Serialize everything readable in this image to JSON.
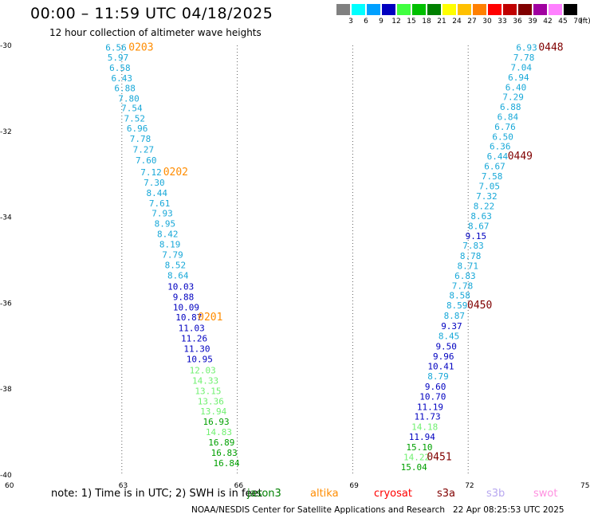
{
  "header": {
    "title": "00:00 – 11:59 UTC 04/18/2025",
    "subtitle": "12 hour collection of altimeter wave heights"
  },
  "color_scale": {
    "unit_label": "(ft)",
    "steps": [
      {
        "label": "3",
        "color": "#808080"
      },
      {
        "label": "6",
        "color": "#00ffff"
      },
      {
        "label": "9",
        "color": "#00a0ff"
      },
      {
        "label": "12",
        "color": "#0000c0"
      },
      {
        "label": "15",
        "color": "#40ff40"
      },
      {
        "label": "18",
        "color": "#00c000"
      },
      {
        "label": "21",
        "color": "#008000"
      },
      {
        "label": "24",
        "color": "#ffff00"
      },
      {
        "label": "27",
        "color": "#ffc000"
      },
      {
        "label": "30",
        "color": "#ff8000"
      },
      {
        "label": "33",
        "color": "#ff0000"
      },
      {
        "label": "36",
        "color": "#c00000"
      },
      {
        "label": "39",
        "color": "#800000"
      },
      {
        "label": "42",
        "color": "#a000a0"
      },
      {
        "label": "45",
        "color": "#ff80ff"
      },
      {
        "label": "70",
        "color": "#000000"
      }
    ]
  },
  "chart_data": {
    "type": "scatter",
    "xlim": [
      60,
      75
    ],
    "ylim": [
      -40,
      -30
    ],
    "x_ticks": [
      "60",
      "63",
      "66",
      "69",
      "72",
      "75"
    ],
    "y_ticks": [
      "-30",
      "-32",
      "-34",
      "-36",
      "-38",
      "-40"
    ],
    "grid": true,
    "points": [
      {
        "x": 62.85,
        "y": -30.05,
        "v": "6.56",
        "c": "#18a8d8"
      },
      {
        "x": 62.9,
        "y": -30.28,
        "v": "5.97",
        "c": "#18a8d8"
      },
      {
        "x": 62.95,
        "y": -30.52,
        "v": "6.58",
        "c": "#18a8d8"
      },
      {
        "x": 63.0,
        "y": -30.76,
        "v": "6.43",
        "c": "#18a8d8"
      },
      {
        "x": 63.08,
        "y": -30.99,
        "v": "6.88",
        "c": "#18a8d8"
      },
      {
        "x": 63.18,
        "y": -31.23,
        "v": "7.80",
        "c": "#18a8d8"
      },
      {
        "x": 63.26,
        "y": -31.46,
        "v": "7.54",
        "c": "#18a8d8"
      },
      {
        "x": 63.33,
        "y": -31.7,
        "v": "7.52",
        "c": "#18a8d8"
      },
      {
        "x": 63.4,
        "y": -31.93,
        "v": "6.96",
        "c": "#18a8d8"
      },
      {
        "x": 63.48,
        "y": -32.17,
        "v": "7.78",
        "c": "#18a8d8"
      },
      {
        "x": 63.56,
        "y": -32.42,
        "v": "7.27",
        "c": "#18a8d8"
      },
      {
        "x": 63.63,
        "y": -32.67,
        "v": "7.60",
        "c": "#18a8d8"
      },
      {
        "x": 63.76,
        "y": -32.95,
        "v": "7.12",
        "c": "#18a8d8"
      },
      {
        "x": 63.84,
        "y": -33.19,
        "v": "7.30",
        "c": "#18a8d8"
      },
      {
        "x": 63.91,
        "y": -33.43,
        "v": "8.44",
        "c": "#18a8d8"
      },
      {
        "x": 63.98,
        "y": -33.67,
        "v": "7.61",
        "c": "#18a8d8"
      },
      {
        "x": 64.05,
        "y": -33.91,
        "v": "7.93",
        "c": "#18a8d8"
      },
      {
        "x": 64.12,
        "y": -34.15,
        "v": "8.95",
        "c": "#18a8d8"
      },
      {
        "x": 64.19,
        "y": -34.39,
        "v": "8.42",
        "c": "#18a8d8"
      },
      {
        "x": 64.25,
        "y": -34.63,
        "v": "8.19",
        "c": "#18a8d8"
      },
      {
        "x": 64.32,
        "y": -34.87,
        "v": "7.79",
        "c": "#18a8d8"
      },
      {
        "x": 64.39,
        "y": -35.11,
        "v": "8.52",
        "c": "#18a8d8"
      },
      {
        "x": 64.46,
        "y": -35.35,
        "v": "8.64",
        "c": "#18a8d8"
      },
      {
        "x": 64.53,
        "y": -35.61,
        "v": "10.03",
        "c": "#0000c0"
      },
      {
        "x": 64.6,
        "y": -35.85,
        "v": "9.88",
        "c": "#0000c0"
      },
      {
        "x": 64.67,
        "y": -36.09,
        "v": "10.09",
        "c": "#0000c0"
      },
      {
        "x": 64.74,
        "y": -36.33,
        "v": "10.87",
        "c": "#0000c0"
      },
      {
        "x": 64.81,
        "y": -36.58,
        "v": "11.03",
        "c": "#0000c0"
      },
      {
        "x": 64.88,
        "y": -36.82,
        "v": "11.26",
        "c": "#0000c0"
      },
      {
        "x": 64.95,
        "y": -37.06,
        "v": "11.30",
        "c": "#0000c0"
      },
      {
        "x": 65.02,
        "y": -37.3,
        "v": "10.95",
        "c": "#0000c0"
      },
      {
        "x": 65.1,
        "y": -37.56,
        "v": "12.03",
        "c": "#70f070"
      },
      {
        "x": 65.17,
        "y": -37.8,
        "v": "14.33",
        "c": "#70f070"
      },
      {
        "x": 65.24,
        "y": -38.04,
        "v": "13.15",
        "c": "#70f070"
      },
      {
        "x": 65.31,
        "y": -38.28,
        "v": "13.36",
        "c": "#70f070"
      },
      {
        "x": 65.38,
        "y": -38.52,
        "v": "13.94",
        "c": "#70f070"
      },
      {
        "x": 65.45,
        "y": -38.76,
        "v": "16.93",
        "c": "#00a000"
      },
      {
        "x": 65.52,
        "y": -39.0,
        "v": "14.83",
        "c": "#70f070"
      },
      {
        "x": 65.59,
        "y": -39.24,
        "v": "16.89",
        "c": "#00a000"
      },
      {
        "x": 65.66,
        "y": -39.48,
        "v": "16.83",
        "c": "#00a000"
      },
      {
        "x": 65.72,
        "y": -39.72,
        "v": "16.84",
        "c": "#00a000"
      },
      {
        "x": 73.52,
        "y": -30.05,
        "v": "6.93",
        "c": "#18a8d8"
      },
      {
        "x": 73.45,
        "y": -30.28,
        "v": "7.78",
        "c": "#18a8d8"
      },
      {
        "x": 73.38,
        "y": -30.51,
        "v": "7.04",
        "c": "#18a8d8"
      },
      {
        "x": 73.31,
        "y": -30.74,
        "v": "6.94",
        "c": "#18a8d8"
      },
      {
        "x": 73.24,
        "y": -30.97,
        "v": "6.40",
        "c": "#18a8d8"
      },
      {
        "x": 73.17,
        "y": -31.2,
        "v": "7.29",
        "c": "#18a8d8"
      },
      {
        "x": 73.1,
        "y": -31.43,
        "v": "6.88",
        "c": "#18a8d8"
      },
      {
        "x": 73.03,
        "y": -31.66,
        "v": "6.84",
        "c": "#18a8d8"
      },
      {
        "x": 72.96,
        "y": -31.89,
        "v": "6.76",
        "c": "#18a8d8"
      },
      {
        "x": 72.9,
        "y": -32.12,
        "v": "6.50",
        "c": "#18a8d8"
      },
      {
        "x": 72.83,
        "y": -32.35,
        "v": "6.36",
        "c": "#18a8d8"
      },
      {
        "x": 72.76,
        "y": -32.58,
        "v": "6.44",
        "c": "#18a8d8"
      },
      {
        "x": 72.69,
        "y": -32.81,
        "v": "6.67",
        "c": "#18a8d8"
      },
      {
        "x": 72.62,
        "y": -33.04,
        "v": "7.58",
        "c": "#18a8d8"
      },
      {
        "x": 72.55,
        "y": -33.27,
        "v": "7.05",
        "c": "#18a8d8"
      },
      {
        "x": 72.48,
        "y": -33.51,
        "v": "7.32",
        "c": "#18a8d8"
      },
      {
        "x": 72.41,
        "y": -33.74,
        "v": "8.22",
        "c": "#18a8d8"
      },
      {
        "x": 72.34,
        "y": -33.97,
        "v": "8.63",
        "c": "#18a8d8"
      },
      {
        "x": 72.27,
        "y": -34.2,
        "v": "8.67",
        "c": "#18a8d8"
      },
      {
        "x": 72.2,
        "y": -34.43,
        "v": "9.15",
        "c": "#0000c0"
      },
      {
        "x": 72.13,
        "y": -34.66,
        "v": "7.83",
        "c": "#18a8d8"
      },
      {
        "x": 72.06,
        "y": -34.9,
        "v": "8.78",
        "c": "#18a8d8"
      },
      {
        "x": 71.99,
        "y": -35.13,
        "v": "8.71",
        "c": "#18a8d8"
      },
      {
        "x": 71.92,
        "y": -35.36,
        "v": "6.83",
        "c": "#18a8d8"
      },
      {
        "x": 71.85,
        "y": -35.59,
        "v": "7.78",
        "c": "#18a8d8"
      },
      {
        "x": 71.78,
        "y": -35.82,
        "v": "8.58",
        "c": "#18a8d8"
      },
      {
        "x": 71.71,
        "y": -36.05,
        "v": "8.59",
        "c": "#18a8d8"
      },
      {
        "x": 71.64,
        "y": -36.29,
        "v": "8.87",
        "c": "#18a8d8"
      },
      {
        "x": 71.57,
        "y": -36.53,
        "v": "9.37",
        "c": "#0000c0"
      },
      {
        "x": 71.5,
        "y": -36.76,
        "v": "8.45",
        "c": "#18a8d8"
      },
      {
        "x": 71.43,
        "y": -37.0,
        "v": "9.50",
        "c": "#0000c0"
      },
      {
        "x": 71.36,
        "y": -37.24,
        "v": "9.96",
        "c": "#0000c0"
      },
      {
        "x": 71.29,
        "y": -37.47,
        "v": "10.41",
        "c": "#0000c0"
      },
      {
        "x": 71.22,
        "y": -37.7,
        "v": "8.79",
        "c": "#18a8d8"
      },
      {
        "x": 71.15,
        "y": -37.94,
        "v": "9.60",
        "c": "#0000c0"
      },
      {
        "x": 71.08,
        "y": -38.17,
        "v": "10.70",
        "c": "#0000c0"
      },
      {
        "x": 71.01,
        "y": -38.41,
        "v": "11.19",
        "c": "#0000c0"
      },
      {
        "x": 70.94,
        "y": -38.64,
        "v": "11.73",
        "c": "#0000c0"
      },
      {
        "x": 70.87,
        "y": -38.88,
        "v": "14.18",
        "c": "#70f070"
      },
      {
        "x": 70.8,
        "y": -39.11,
        "v": "11.94",
        "c": "#0000c0"
      },
      {
        "x": 70.73,
        "y": -39.35,
        "v": "15.10",
        "c": "#00a000"
      },
      {
        "x": 70.66,
        "y": -39.58,
        "v": "14.22",
        "c": "#70f070"
      },
      {
        "x": 70.59,
        "y": -39.81,
        "v": "15.04",
        "c": "#00a000"
      }
    ],
    "pass_labels": [
      {
        "text": "0203",
        "x": 63.5,
        "y": -30.05,
        "c": "#ff8c00"
      },
      {
        "text": "0202",
        "x": 64.4,
        "y": -32.95,
        "c": "#ff8c00"
      },
      {
        "text": "0201",
        "x": 65.3,
        "y": -36.33,
        "c": "#ff8c00"
      },
      {
        "text": "0448",
        "x": 74.15,
        "y": -30.05,
        "c": "#800000"
      },
      {
        "text": "0449",
        "x": 73.35,
        "y": -32.58,
        "c": "#800000"
      },
      {
        "text": "0450",
        "x": 72.3,
        "y": -36.05,
        "c": "#800000"
      },
      {
        "text": "0451",
        "x": 71.25,
        "y": -39.58,
        "c": "#800000"
      }
    ]
  },
  "footer": {
    "note": "note:  1) Time is in UTC; 2) SWH is in feet",
    "satellites": [
      {
        "name": "jason3",
        "color": "#008000"
      },
      {
        "name": "altika",
        "color": "#ff8c00"
      },
      {
        "name": "cryosat",
        "color": "#ff0000"
      },
      {
        "name": "s3a",
        "color": "#800000"
      },
      {
        "name": "s3b",
        "color": "#b8a8f0"
      },
      {
        "name": "swot",
        "color": "#ff90e0"
      }
    ],
    "credit": "NOAA/NESDIS Center for Satellite Applications and Research",
    "timestamp": "22 Apr 08:25:53 UTC 2025"
  }
}
